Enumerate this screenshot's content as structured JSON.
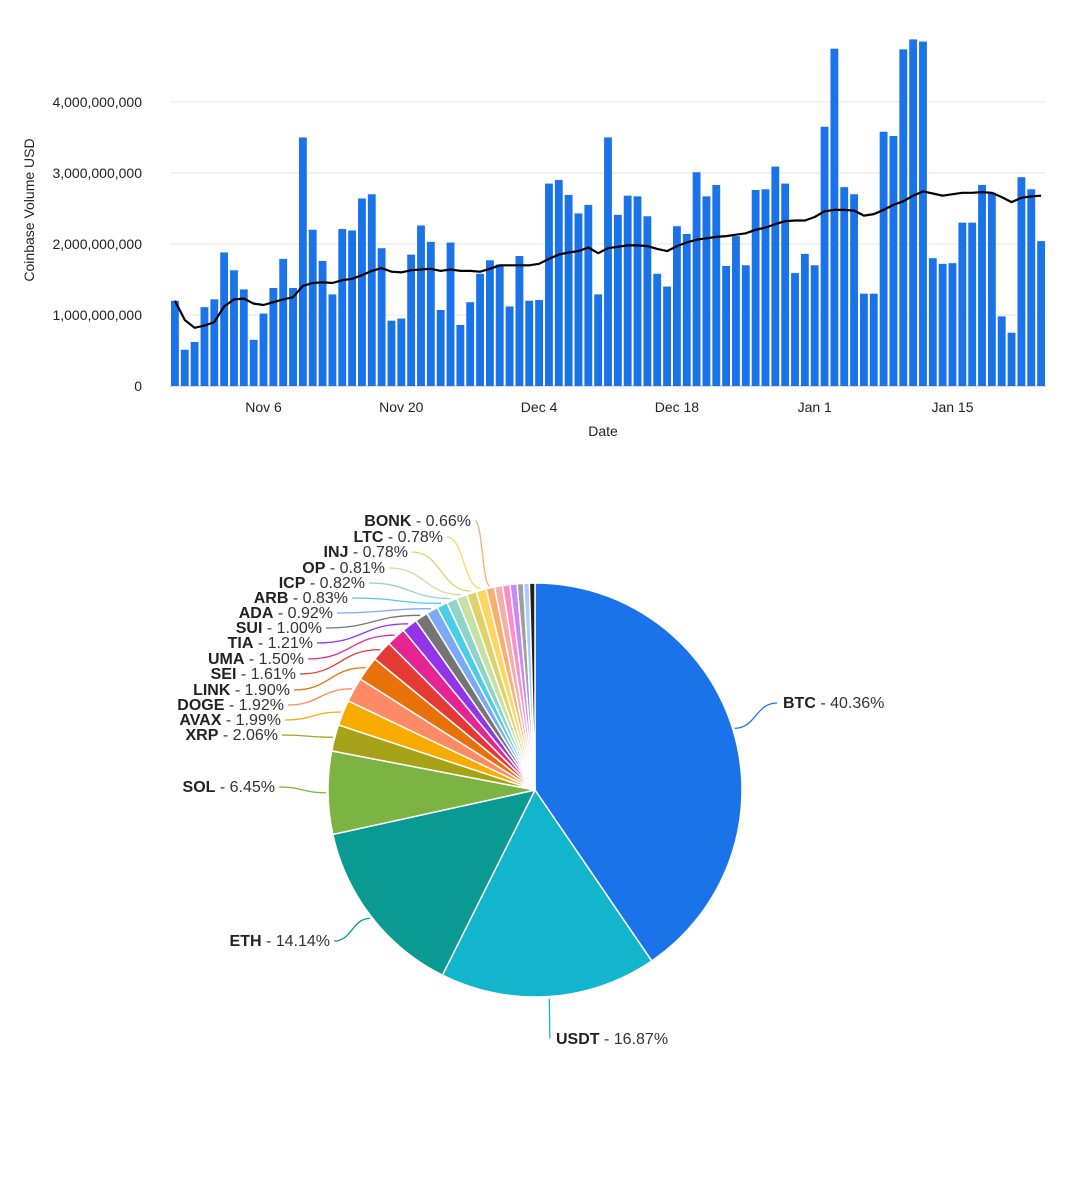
{
  "chart_data": [
    {
      "type": "bar",
      "xlabel": "Date",
      "ylabel": "Coinbase Volume USD",
      "ylim": [
        0,
        4900000000
      ],
      "yticks": [
        0,
        1000000000,
        2000000000,
        3000000000,
        4000000000
      ],
      "ytick_labels": [
        "0",
        "1,000,000,000",
        "2,000,000,000",
        "3,000,000,000",
        "4,000,000,000"
      ],
      "xtick_labels": [
        {
          "index": 9,
          "label": "Nov 6"
        },
        {
          "index": 23,
          "label": "Nov 20"
        },
        {
          "index": 37,
          "label": "Dec 4"
        },
        {
          "index": 51,
          "label": "Dec 18"
        },
        {
          "index": 65,
          "label": "Jan 1"
        },
        {
          "index": 79,
          "label": "Jan 15"
        }
      ],
      "grid": true,
      "bar_color": "#1a73e8",
      "line_color": "#000000",
      "series": [
        {
          "values": [
            1200000000,
            510000000,
            620000000,
            1110000000,
            1220000000,
            1880000000,
            1630000000,
            1360000000,
            650000000,
            1020000000,
            1380000000,
            1790000000,
            1380000000,
            3500000000,
            2200000000,
            1760000000,
            1290000000,
            2210000000,
            2190000000,
            2640000000,
            2700000000,
            1940000000,
            920000000,
            950000000,
            1850000000,
            2260000000,
            2030000000,
            1070000000,
            2020000000,
            860000000,
            1180000000,
            1580000000,
            1770000000,
            1710000000,
            1120000000,
            1830000000,
            1200000000,
            1210000000,
            2850000000,
            2900000000,
            2690000000,
            2430000000,
            2550000000,
            1290000000,
            3500000000,
            2410000000,
            2680000000,
            2670000000,
            2390000000,
            1580000000,
            1400000000,
            2250000000,
            2140000000,
            3010000000,
            2670000000,
            2830000000,
            1690000000,
            2110000000,
            1700000000,
            2760000000,
            2770000000,
            3090000000,
            2850000000,
            1590000000,
            1860000000,
            1700000000,
            3650000000,
            4750000000,
            2800000000,
            2700000000,
            1300000000,
            1300000000,
            3580000000,
            3520000000,
            4740000000,
            4880000000,
            4850000000,
            1800000000,
            1720000000,
            1730000000,
            2300000000,
            2300000000,
            2830000000,
            2720000000,
            980000000,
            750000000,
            2940000000,
            2770000000,
            2040000000
          ]
        },
        {
          "type": "line",
          "values": [
            1200000000,
            930000000,
            820000000,
            850000000,
            900000000,
            1120000000,
            1220000000,
            1230000000,
            1160000000,
            1140000000,
            1180000000,
            1220000000,
            1250000000,
            1410000000,
            1450000000,
            1460000000,
            1450000000,
            1490000000,
            1510000000,
            1560000000,
            1620000000,
            1660000000,
            1610000000,
            1600000000,
            1630000000,
            1640000000,
            1650000000,
            1620000000,
            1640000000,
            1620000000,
            1620000000,
            1610000000,
            1650000000,
            1700000000,
            1700000000,
            1700000000,
            1700000000,
            1720000000,
            1790000000,
            1850000000,
            1880000000,
            1900000000,
            1950000000,
            1870000000,
            1940000000,
            1960000000,
            1980000000,
            1980000000,
            1970000000,
            1930000000,
            1900000000,
            1970000000,
            2020000000,
            2060000000,
            2080000000,
            2100000000,
            2110000000,
            2130000000,
            2150000000,
            2200000000,
            2230000000,
            2280000000,
            2320000000,
            2330000000,
            2330000000,
            2380000000,
            2460000000,
            2480000000,
            2480000000,
            2470000000,
            2400000000,
            2420000000,
            2480000000,
            2550000000,
            2600000000,
            2680000000,
            2740000000,
            2710000000,
            2680000000,
            2700000000,
            2720000000,
            2720000000,
            2730000000,
            2720000000,
            2660000000,
            2590000000,
            2650000000,
            2670000000,
            2680000000
          ]
        }
      ]
    },
    {
      "type": "pie",
      "slices": [
        {
          "name": "BTC",
          "value": 40.36,
          "label": "40.36%",
          "color": "#1a73e8"
        },
        {
          "name": "USDT",
          "value": 16.87,
          "label": "16.87%",
          "color": "#12b5cb"
        },
        {
          "name": "ETH",
          "value": 14.14,
          "label": "14.14%",
          "color": "#0a9a94"
        },
        {
          "name": "SOL",
          "value": 6.45,
          "label": "6.45%",
          "color": "#7cb342"
        },
        {
          "name": "XRP",
          "value": 2.06,
          "label": "2.06%",
          "color": "#a7a319"
        },
        {
          "name": "AVAX",
          "value": 1.99,
          "label": "1.99%",
          "color": "#f9ab00"
        },
        {
          "name": "DOGE",
          "value": 1.92,
          "label": "1.92%",
          "color": "#ff8a65"
        },
        {
          "name": "LINK",
          "value": 1.9,
          "label": "1.90%",
          "color": "#e8710a"
        },
        {
          "name": "SEI",
          "value": 1.61,
          "label": "1.61%",
          "color": "#e53935"
        },
        {
          "name": "UMA",
          "value": 1.5,
          "label": "1.50%",
          "color": "#e52592"
        },
        {
          "name": "TIA",
          "value": 1.21,
          "label": "1.21%",
          "color": "#9334e6"
        },
        {
          "name": "SUI",
          "value": 1.0,
          "label": "1.00%",
          "color": "#757575"
        },
        {
          "name": "ADA",
          "value": 0.92,
          "label": "0.92%",
          "color": "#7baaf7"
        },
        {
          "name": "ARB",
          "value": 0.83,
          "label": "0.83%",
          "color": "#4ecde6"
        },
        {
          "name": "ICP",
          "value": 0.82,
          "label": "0.82%",
          "color": "#8fd3c9"
        },
        {
          "name": "OP",
          "value": 0.81,
          "label": "0.81%",
          "color": "#c5e1a5"
        },
        {
          "name": "INJ",
          "value": 0.78,
          "label": "0.78%",
          "color": "#e0d26b"
        },
        {
          "name": "LTC",
          "value": 0.78,
          "label": "0.78%",
          "color": "#fdd663"
        },
        {
          "name": "BONK",
          "value": 0.66,
          "label": "0.66%",
          "color": "#fcad70"
        },
        {
          "name": "",
          "value": 0.62,
          "label": "",
          "color": "#f6aea9"
        },
        {
          "name": "",
          "value": 0.58,
          "label": "",
          "color": "#ff8bcb"
        },
        {
          "name": "",
          "value": 0.55,
          "label": "",
          "color": "#c58af9"
        },
        {
          "name": "",
          "value": 0.5,
          "label": "",
          "color": "#a0a0a0"
        },
        {
          "name": "",
          "value": 0.45,
          "label": "",
          "color": "#aecbfa"
        },
        {
          "name": "",
          "value": 0.43,
          "label": "",
          "color": "#202124"
        }
      ]
    }
  ]
}
